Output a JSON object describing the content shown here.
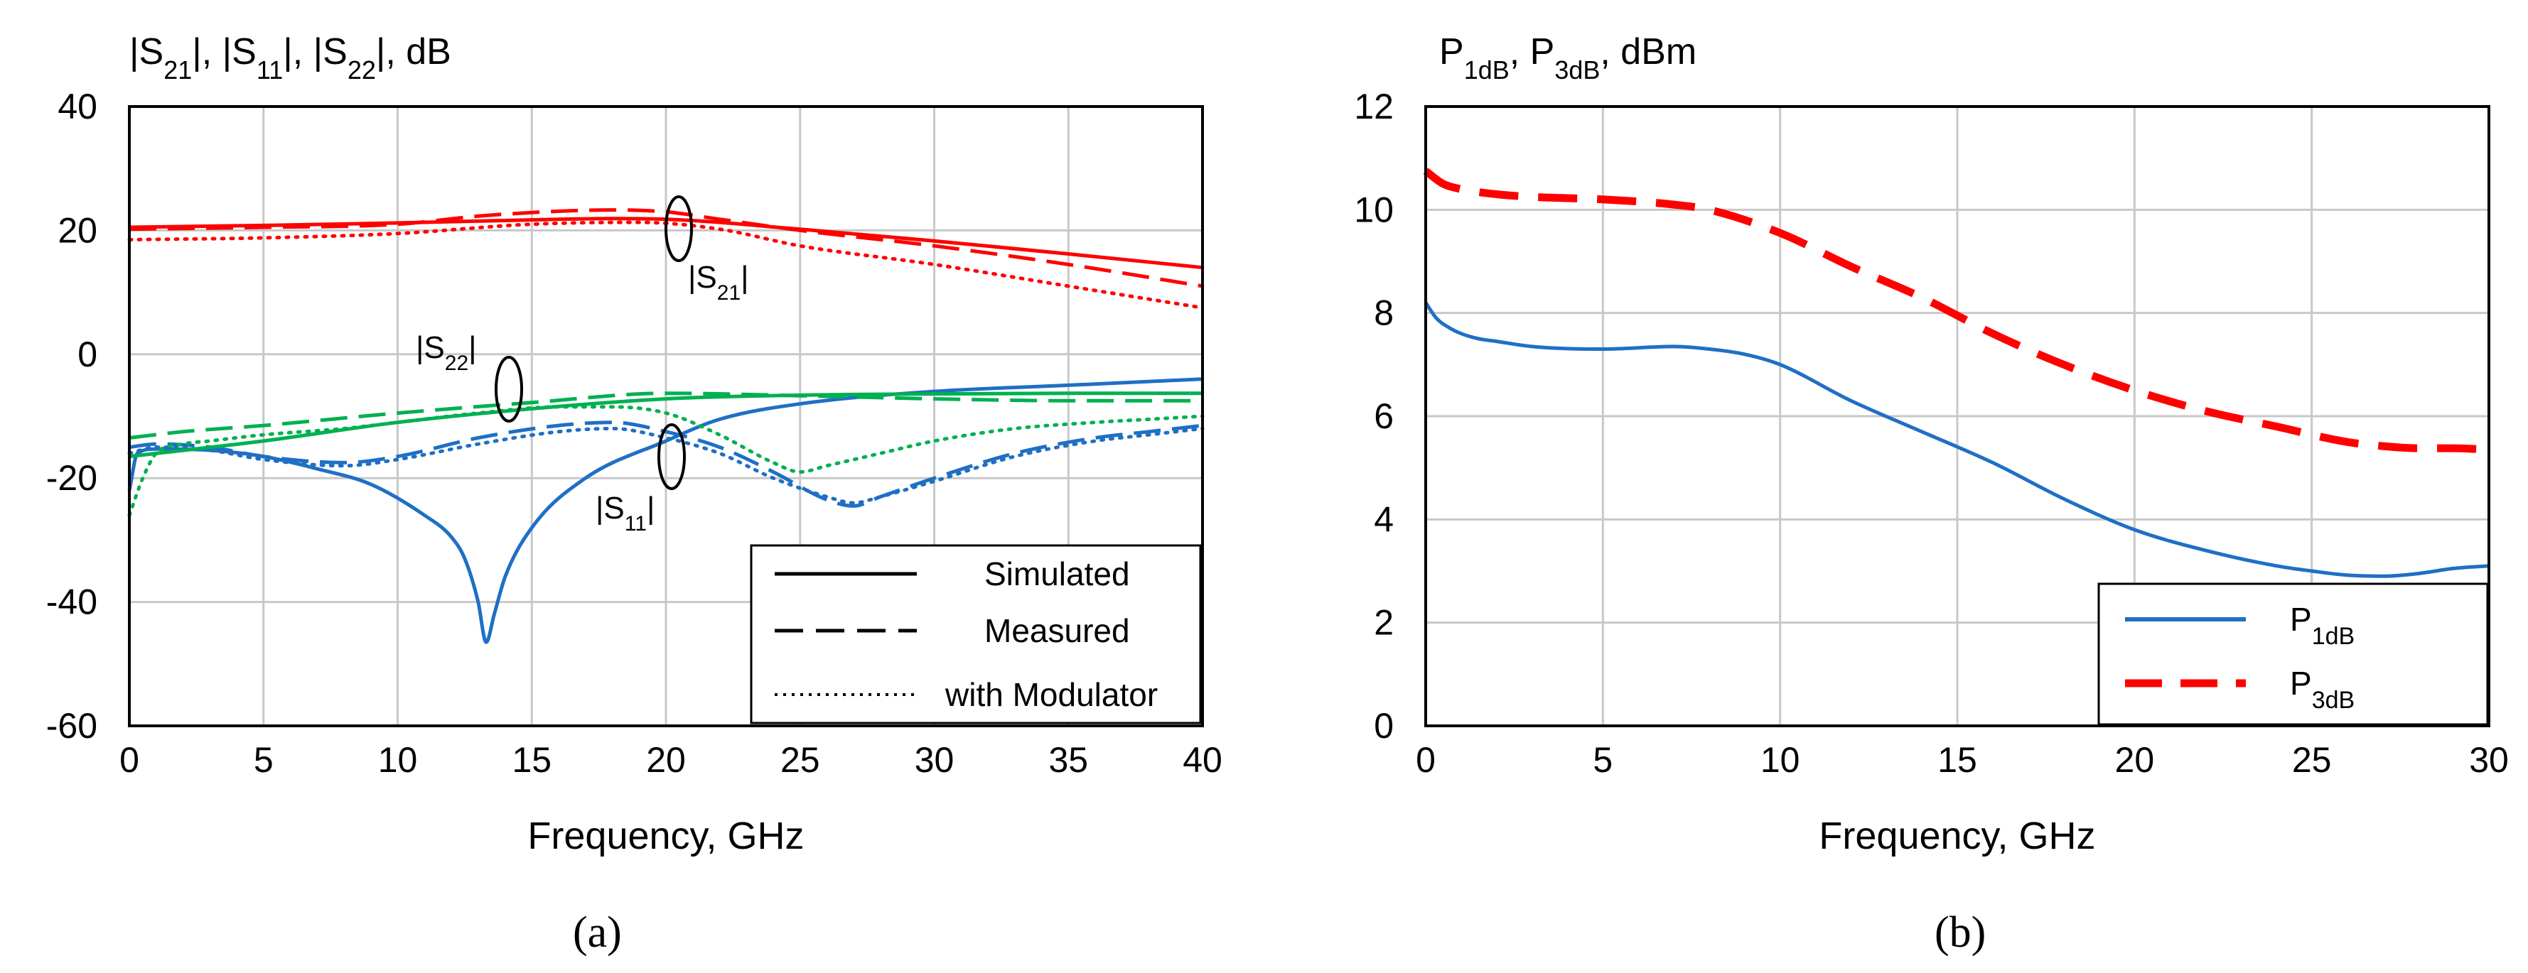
{
  "chart_data": [
    {
      "panel": "(a)",
      "type": "line",
      "title": "|S21|, |S11|, |S22|, dB",
      "xlabel": "Frequency, GHz",
      "ylabel": "|S21|, |S11|, |S22|, dB",
      "xlim": [
        0,
        40
      ],
      "ylim": [
        -60,
        40
      ],
      "xticks": [
        0,
        5,
        10,
        15,
        20,
        25,
        30,
        35,
        40
      ],
      "yticks": [
        -60,
        -40,
        -20,
        0,
        20,
        40
      ],
      "grid": true,
      "legend": {
        "position": "bottom-right",
        "entries": [
          {
            "label": "Simulated",
            "style": "solid"
          },
          {
            "label": "Measured",
            "style": "dashed"
          },
          {
            "label": "with Modulator",
            "style": "dotted"
          }
        ]
      },
      "annotations": [
        {
          "label": "|S21|",
          "x": 20.5,
          "y": 20
        },
        {
          "label": "|S22|",
          "x": 14.2,
          "y": -5
        },
        {
          "label": "|S11|",
          "x": 20.2,
          "y": -17
        }
      ],
      "colors": {
        "S21": "#ff0000",
        "S11": "#1f6fc5",
        "S22": "#00b050"
      },
      "series": [
        {
          "name": "S21 Simulated",
          "param": "S21",
          "style": "solid",
          "x": [
            0,
            5,
            10,
            15,
            18,
            20,
            25,
            30,
            35,
            40
          ],
          "y": [
            20.5,
            20.8,
            21.2,
            21.7,
            21.9,
            21.8,
            20.2,
            18.3,
            16.2,
            14
          ]
        },
        {
          "name": "S21 Measured",
          "param": "S21",
          "style": "dashed",
          "x": [
            0,
            5,
            10,
            13,
            16,
            18,
            20,
            22,
            25,
            30,
            35,
            40
          ],
          "y": [
            20.2,
            20.5,
            21,
            22.3,
            23.1,
            23.3,
            23,
            21.8,
            20,
            17.5,
            14.5,
            11
          ]
        },
        {
          "name": "S21 with Modulator",
          "param": "S21",
          "style": "dotted",
          "x": [
            0,
            5,
            10,
            15,
            19,
            22,
            25,
            30,
            35,
            40
          ],
          "y": [
            18.5,
            18.8,
            19.5,
            21,
            21.3,
            20.2,
            17.5,
            14.5,
            11,
            7.5
          ]
        },
        {
          "name": "S11 Simulated",
          "param": "S11",
          "style": "solid",
          "x": [
            0,
            0.3,
            1,
            3,
            5,
            7,
            9,
            11,
            12,
            12.5,
            13,
            13.3,
            13.6,
            14,
            15,
            17,
            20,
            22,
            25,
            30,
            35,
            40
          ],
          "y": [
            -22,
            -16,
            -15.3,
            -15.5,
            -16.5,
            -18.5,
            -21,
            -26,
            -29.5,
            -33,
            -40,
            -46.5,
            -42,
            -36,
            -28,
            -20,
            -14,
            -10.5,
            -8,
            -6,
            -5,
            -4
          ]
        },
        {
          "name": "S11 Measured",
          "param": "S11",
          "style": "dashed",
          "x": [
            0,
            1,
            3,
            5,
            8,
            10,
            13,
            16,
            18,
            20,
            22,
            24,
            26,
            27,
            28,
            30,
            33,
            36,
            38,
            40
          ],
          "y": [
            -15,
            -14.5,
            -15,
            -16.5,
            -17.5,
            -16.5,
            -13.5,
            -11.5,
            -11,
            -12.5,
            -15,
            -19,
            -23.5,
            -24.5,
            -23,
            -20,
            -16,
            -13.5,
            -12.5,
            -11.5
          ]
        },
        {
          "name": "S11 with Modulator",
          "param": "S11",
          "style": "dotted",
          "x": [
            0,
            1,
            3,
            5,
            8,
            10,
            13,
            16,
            18,
            20,
            22,
            24,
            26,
            27,
            28,
            30,
            33,
            36,
            38,
            40
          ],
          "y": [
            -16,
            -15,
            -15.5,
            -17,
            -18,
            -17,
            -14.5,
            -12.5,
            -12,
            -13.5,
            -16,
            -20,
            -23,
            -24,
            -23,
            -20.5,
            -16.5,
            -14,
            -13,
            -12
          ]
        },
        {
          "name": "S22 Simulated",
          "param": "S22",
          "style": "solid",
          "x": [
            0,
            5,
            10,
            15,
            20,
            25,
            30,
            35,
            40
          ],
          "y": [
            -16.5,
            -14,
            -11,
            -8.8,
            -7.2,
            -6.6,
            -6.4,
            -6.3,
            -6.3
          ]
        },
        {
          "name": "S22 Measured",
          "param": "S22",
          "style": "dashed",
          "x": [
            0,
            2,
            5,
            10,
            15,
            20,
            25,
            30,
            35,
            40
          ],
          "y": [
            -13.5,
            -12.5,
            -11.5,
            -9.5,
            -7.8,
            -6.3,
            -6.7,
            -7.2,
            -7.5,
            -7.5
          ]
        },
        {
          "name": "S22 with Modulator",
          "param": "S22",
          "style": "dotted",
          "x": [
            0,
            0.5,
            1,
            2,
            3,
            5,
            8,
            10,
            13,
            16,
            18,
            20,
            22,
            24,
            25,
            26,
            28,
            30,
            33,
            36,
            38,
            40
          ],
          "y": [
            -26,
            -20,
            -16,
            -14.5,
            -14,
            -13,
            -12,
            -11,
            -9.5,
            -8.5,
            -8.5,
            -9.5,
            -13,
            -17.5,
            -19,
            -18,
            -16,
            -14,
            -12,
            -11,
            -10.5,
            -10
          ]
        }
      ]
    },
    {
      "panel": "(b)",
      "type": "line",
      "title": "P1dB, P3dB, dBm",
      "xlabel": "Frequency, GHz",
      "ylabel": "P1dB, P3dB, dBm",
      "xlim": [
        0,
        30
      ],
      "ylim": [
        0,
        12
      ],
      "xticks": [
        0,
        5,
        10,
        15,
        20,
        25,
        30
      ],
      "yticks": [
        0,
        2,
        4,
        6,
        8,
        10,
        12
      ],
      "grid": true,
      "legend": {
        "position": "bottom-right",
        "entries": [
          {
            "label": "P1dB",
            "style": "solid"
          },
          {
            "label": "P3dB",
            "style": "dashed"
          }
        ]
      },
      "colors": {
        "P1dB": "#1f6fc5",
        "P3dB": "#ff0000"
      },
      "series": [
        {
          "name": "P1dB",
          "style": "solid",
          "x": [
            0,
            0.3,
            0.7,
            1,
            1.5,
            2,
            3,
            5,
            7,
            8,
            9,
            10,
            12,
            14,
            16,
            18,
            20,
            22,
            24,
            25,
            26,
            27,
            28,
            29,
            30
          ],
          "y": [
            8.2,
            7.9,
            7.7,
            7.6,
            7.5,
            7.45,
            7.35,
            7.3,
            7.35,
            7.3,
            7.2,
            7.0,
            6.3,
            5.7,
            5.1,
            4.4,
            3.8,
            3.4,
            3.1,
            3.0,
            2.92,
            2.9,
            2.95,
            3.05,
            3.1
          ]
        },
        {
          "name": "P3dB",
          "style": "dashed",
          "x": [
            0,
            0.5,
            1,
            2,
            3,
            5,
            7,
            8,
            10,
            12,
            14,
            16,
            18,
            20,
            22,
            24,
            26,
            27,
            28,
            29,
            30
          ],
          "y": [
            10.75,
            10.5,
            10.4,
            10.3,
            10.25,
            10.2,
            10.1,
            10.0,
            9.55,
            8.9,
            8.3,
            7.6,
            7.0,
            6.5,
            6.1,
            5.8,
            5.5,
            5.42,
            5.38,
            5.38,
            5.35
          ]
        }
      ]
    }
  ],
  "captions": {
    "a": "(a)",
    "b": "(b)"
  },
  "panel_a": {
    "ytitle": {
      "p1": "|S",
      "s1": "21",
      "p2": "|, |S",
      "s2": "11",
      "p3": "|, |S",
      "s3": "22",
      "p4": "|, dB"
    },
    "ann_s21": {
      "pre": "|S",
      "sub": "21",
      "post": "|"
    },
    "ann_s22": {
      "pre": "|S",
      "sub": "22",
      "post": "|"
    },
    "ann_s11": {
      "pre": "|S",
      "sub": "11",
      "post": "|"
    }
  },
  "panel_b": {
    "ytitle": {
      "p1": "P",
      "s1": "1dB",
      "p2": ", P",
      "s2": "3dB",
      "p3": ", dBm"
    },
    "leg1": {
      "pre": "P",
      "sub": "1dB"
    },
    "leg2": {
      "pre": "P",
      "sub": "3dB"
    }
  }
}
